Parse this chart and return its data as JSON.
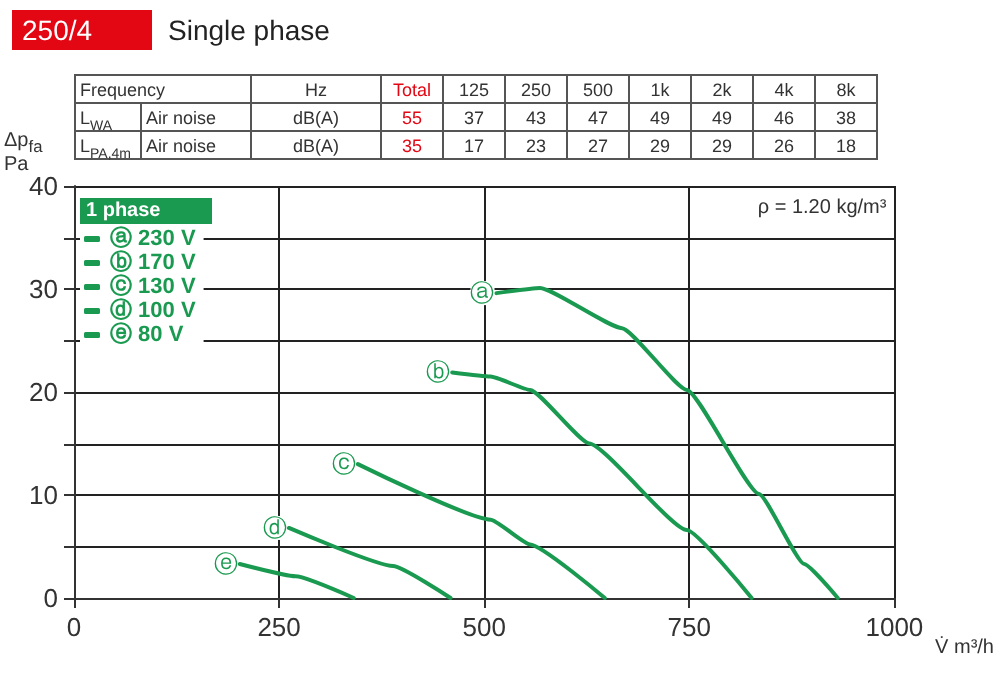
{
  "chart_data": {
    "type": "line",
    "title": "250/4",
    "subtitle": "Single phase",
    "xlabel": "V̇ m³/h",
    "ylabel": "Δp$_{fa}$\nPa",
    "legend_title": "1 phase",
    "annotations": [
      "ρ = 1.20 kg/m³",
      "Frequency",
      "Hz",
      "Total",
      "125",
      "250",
      "500",
      "1k",
      "2k",
      "4k",
      "8k",
      "L$_{WA}$",
      "Air noise",
      "dB(A)",
      "55",
      "37",
      "43",
      "47",
      "49",
      "49",
      "46",
      "38",
      "L$_{PA,4m}$",
      "Air noise",
      "dB(A)",
      "35",
      "17",
      "23",
      "27",
      "29",
      "29",
      "26",
      "18",
      {
        "text": "ⓐ",
        "x": 515,
        "y": 29.6
      },
      {
        "text": "ⓑ",
        "x": 461,
        "y": 21.9
      },
      {
        "text": "ⓒ",
        "x": 346,
        "y": 13.0
      },
      {
        "text": "ⓓ",
        "x": 262,
        "y": 6.8
      },
      {
        "text": "ⓔ",
        "x": 202,
        "y": 3.3
      }
    ],
    "series": [
      {
        "name": "ⓐ 230 V",
        "color": "#1a9a50",
        "x": [
          515,
          568,
          668,
          747,
          835,
          890,
          931
        ],
        "values": [
          29.6,
          30.1,
          26.2,
          20.2,
          10.1,
          3.3,
          0
        ]
      },
      {
        "name": "ⓑ 170 V",
        "color": "#1a9a50",
        "x": [
          461,
          508,
          556,
          628,
          747,
          826
        ],
        "values": [
          21.9,
          21.5,
          20.2,
          15.0,
          6.6,
          0
        ]
      },
      {
        "name": "ⓒ 130 V",
        "color": "#1a9a50",
        "x": [
          346,
          508,
          556,
          647
        ],
        "values": [
          13.0,
          7.6,
          5.2,
          0
        ]
      },
      {
        "name": "ⓓ 100 V",
        "color": "#1a9a50",
        "x": [
          262,
          389,
          459
        ],
        "values": [
          6.8,
          3.1,
          0
        ]
      },
      {
        "name": "ⓔ 80 V",
        "color": "#1a9a50",
        "x": [
          202,
          270,
          341
        ],
        "values": [
          3.3,
          2.1,
          0
        ]
      }
    ],
    "xlim": [
      0,
      1000
    ],
    "xticks": [
      0,
      250,
      500,
      750,
      1000
    ],
    "ylim": [
      0,
      40
    ],
    "yticks": [
      0,
      {
        "value": 5,
        "label": null
      },
      10,
      {
        "value": 15,
        "label": null
      },
      20,
      {
        "value": 25,
        "label": null
      },
      30,
      {
        "value": 35,
        "label": null
      },
      40
    ],
    "grid": true,
    "legend": "top left",
    "marker": "none",
    "line_style": "solid"
  }
}
